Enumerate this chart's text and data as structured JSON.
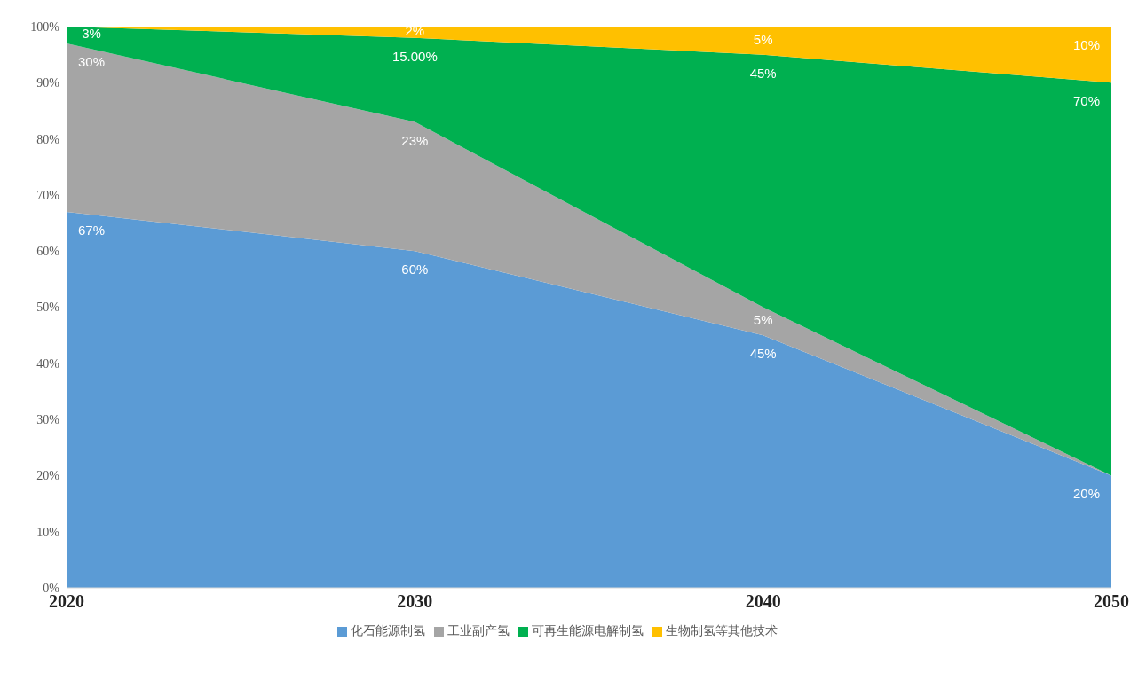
{
  "chart_data": {
    "type": "area",
    "stacked": true,
    "categories": [
      "2020",
      "2030",
      "2040",
      "2050"
    ],
    "series": [
      {
        "name": "化石能源制氢",
        "color": "#5b9bd5",
        "values": [
          67,
          60,
          45,
          20
        ],
        "value_labels": [
          "67%",
          "60%",
          "45%",
          "20%"
        ]
      },
      {
        "name": "工业副产氢",
        "color": "#a5a5a5",
        "values": [
          30,
          23,
          5,
          0
        ],
        "value_labels": [
          "30%",
          "23%",
          "5%",
          null
        ]
      },
      {
        "name": "可再生能源电解制氢",
        "color": "#00b050",
        "values": [
          3,
          15,
          45,
          70
        ],
        "value_labels": [
          "3%",
          "15.00%",
          "45%",
          "70%"
        ]
      },
      {
        "name": "生物制氢等其他技术",
        "color": "#ffc000",
        "values": [
          0,
          2,
          5,
          10
        ],
        "value_labels": [
          null,
          "2%",
          "5%",
          "10%"
        ]
      }
    ],
    "ylim": [
      0,
      100
    ],
    "yticks": [
      {
        "value": 0,
        "label": "0%"
      },
      {
        "value": 10,
        "label": "10%"
      },
      {
        "value": 20,
        "label": "20%"
      },
      {
        "value": 30,
        "label": "30%"
      },
      {
        "value": 40,
        "label": "40%"
      },
      {
        "value": 50,
        "label": "50%"
      },
      {
        "value": 60,
        "label": "60%"
      },
      {
        "value": 70,
        "label": "70%"
      },
      {
        "value": 80,
        "label": "80%"
      },
      {
        "value": 90,
        "label": "90%"
      },
      {
        "value": 100,
        "label": "100%"
      }
    ],
    "grid": false,
    "legend": "bottom"
  }
}
